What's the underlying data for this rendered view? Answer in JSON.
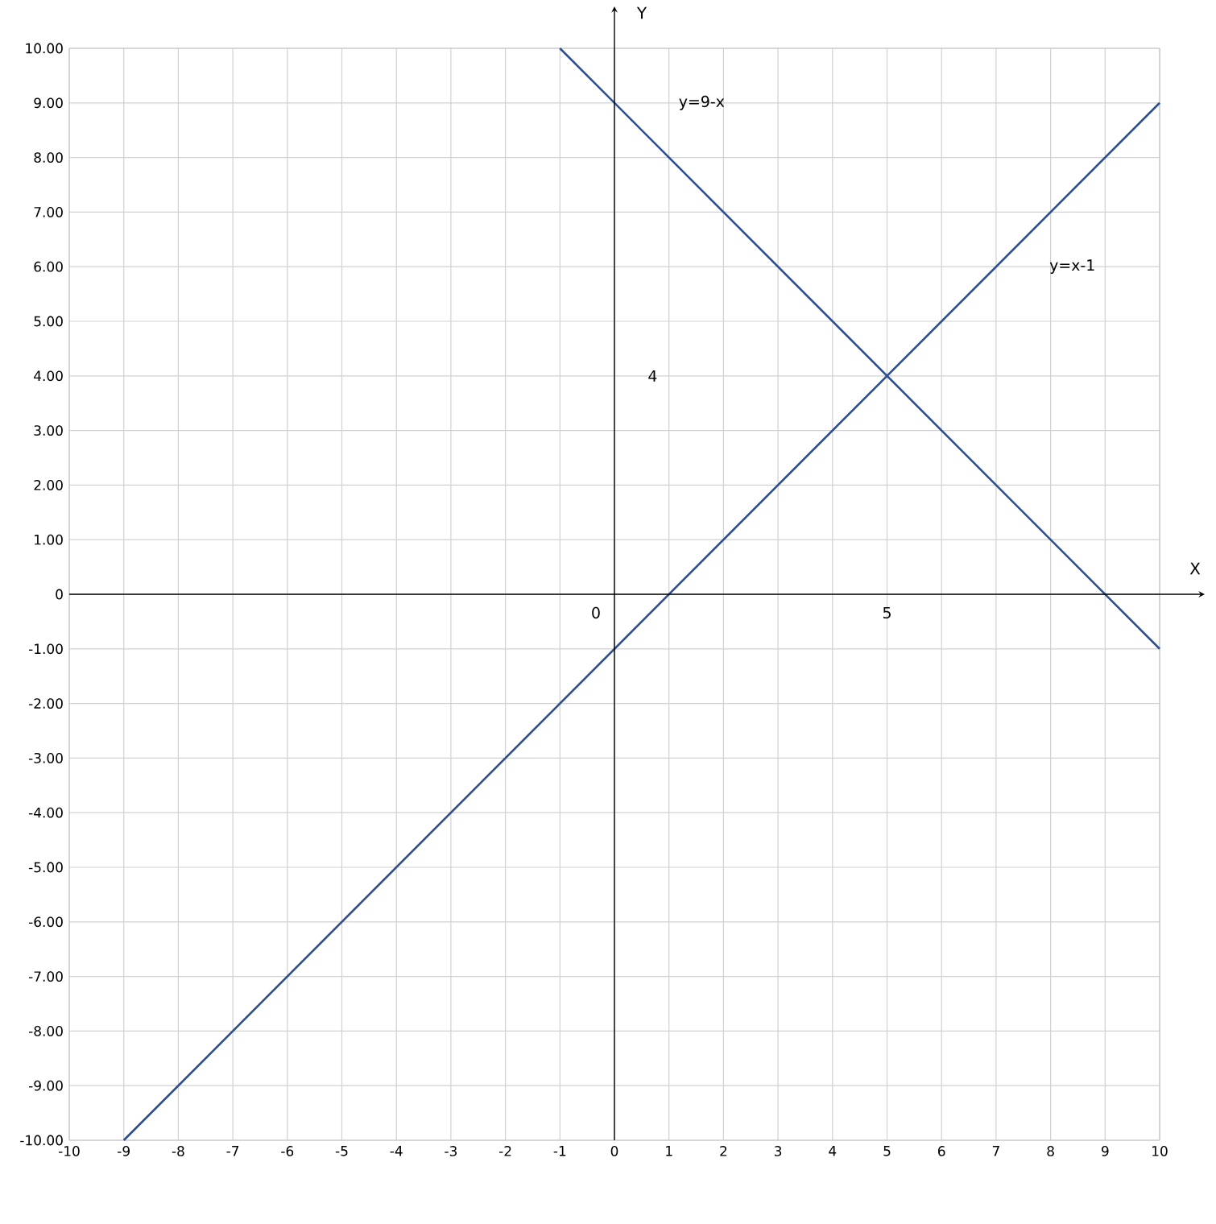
{
  "chart_data": {
    "type": "line",
    "xlabel": "X",
    "ylabel": "Y",
    "xlim": [
      -10,
      10
    ],
    "ylim": [
      -10,
      10
    ],
    "xticks": [
      -10,
      -9,
      -8,
      -7,
      -6,
      -5,
      -4,
      -3,
      -2,
      -1,
      0,
      1,
      2,
      3,
      4,
      5,
      6,
      7,
      8,
      9,
      10
    ],
    "yticks": [
      {
        "value": -10,
        "label": "-10.00"
      },
      {
        "value": -9,
        "label": "-9.00"
      },
      {
        "value": -8,
        "label": "-8.00"
      },
      {
        "value": -7,
        "label": "-7.00"
      },
      {
        "value": -6,
        "label": "-6.00"
      },
      {
        "value": -5,
        "label": "-5.00"
      },
      {
        "value": -4,
        "label": "-4.00"
      },
      {
        "value": -3,
        "label": "-3.00"
      },
      {
        "value": -2,
        "label": "-2.00"
      },
      {
        "value": -1,
        "label": "-1.00"
      },
      0,
      {
        "value": 1,
        "label": "1.00"
      },
      {
        "value": 2,
        "label": "2.00"
      },
      {
        "value": 3,
        "label": "3.00"
      },
      {
        "value": 4,
        "label": "4.00"
      },
      {
        "value": 5,
        "label": "5.00"
      },
      {
        "value": 6,
        "label": "6.00"
      },
      {
        "value": 7,
        "label": "7.00"
      },
      {
        "value": 8,
        "label": "8.00"
      },
      {
        "value": 9,
        "label": "9.00"
      },
      {
        "value": 10,
        "label": "10.00"
      }
    ],
    "grid": true,
    "series": [
      {
        "color": "#2e4f8f",
        "x": [
          -1,
          10
        ],
        "values": [
          10,
          -1
        ]
      },
      {
        "color": "#2e4f8f",
        "x": [
          -9,
          10
        ],
        "values": [
          -10,
          9
        ]
      }
    ],
    "annotations": [
      "y=9-x",
      "y=x-1",
      "4",
      "0",
      "5"
    ]
  }
}
